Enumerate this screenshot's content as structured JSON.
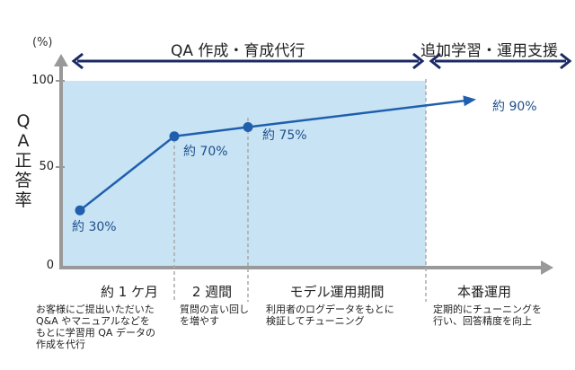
{
  "unit_label": "(%)",
  "y_axis_label_chars": [
    "Q",
    "A",
    "正",
    "答",
    "率"
  ],
  "phases": {
    "build": "QA 作成・育成代行",
    "support": "追加学習・運用支援"
  },
  "segments": [
    {
      "label": "約 1 ケ月",
      "desc": [
        "お客様にご提出いただいた",
        "Q&A やマニュアルなどを",
        "もとに学習用 QA データの",
        "作成を代行"
      ]
    },
    {
      "label": "2 週間",
      "desc": [
        "質問の言い回し",
        "を増やす"
      ]
    },
    {
      "label": "モデル運用期間",
      "desc": [
        "利用者のログデータをもとに",
        "検証してチューニング"
      ]
    },
    {
      "label": "本番運用",
      "desc": [
        "定期的にチューニングを",
        "行い、回答精度を向上"
      ]
    }
  ],
  "chart_data": {
    "type": "line",
    "y_ticks": [
      0,
      50,
      100
    ],
    "ylim": [
      0,
      100
    ],
    "ylabel": "QA正答率",
    "points": [
      {
        "stage": 0,
        "y": 30,
        "label": "約 30%"
      },
      {
        "stage": 1,
        "y": 70,
        "label": "約 70%"
      },
      {
        "stage": 2,
        "y": 75,
        "label": "約 75%"
      },
      {
        "stage": 3,
        "y": 90,
        "label": "約 90%"
      }
    ],
    "colors": {
      "line": "#1f5fad",
      "area": "#c8e4f4",
      "axis": "#999999",
      "arrow": "#1a2a66"
    }
  }
}
